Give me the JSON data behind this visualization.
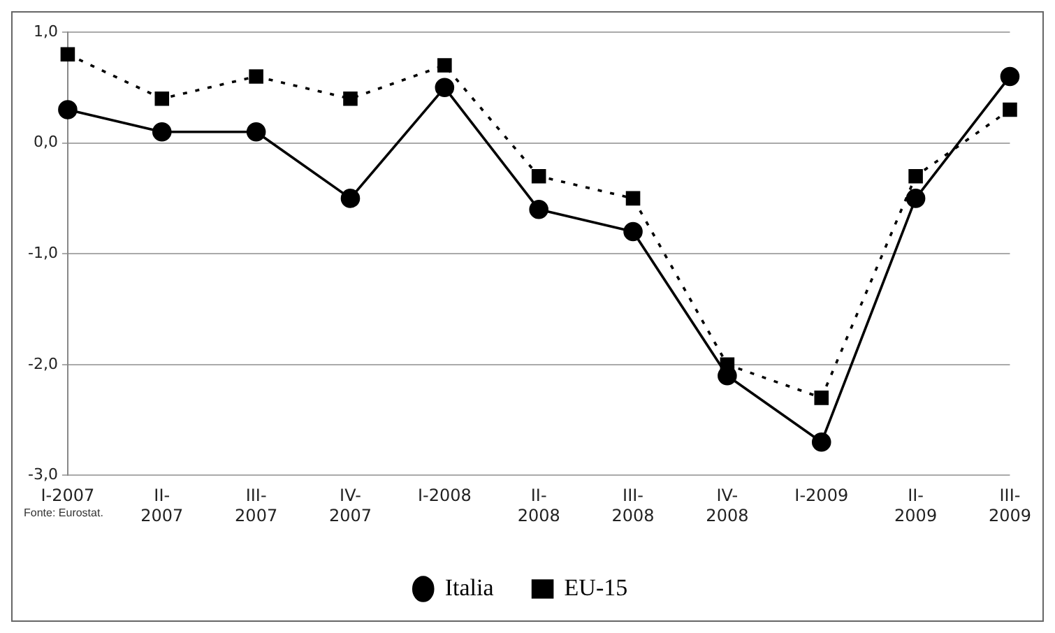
{
  "chart_data": {
    "type": "line",
    "categories": [
      "I-2007",
      "II- 2007",
      "III- 2007",
      "IV- 2007",
      "I-2008",
      "II- 2008",
      "III- 2008",
      "IV- 2008",
      "I-2009",
      "II- 2009",
      "III- 2009"
    ],
    "series": [
      {
        "name": "Italia",
        "color": "#000000",
        "marker": "circle",
        "line_style": "solid",
        "values": [
          0.3,
          0.1,
          0.1,
          -0.5,
          0.5,
          -0.6,
          -0.8,
          -2.1,
          -2.7,
          -0.5,
          0.6
        ]
      },
      {
        "name": "EU-15",
        "color": "#000000",
        "marker": "square",
        "line_style": "dotted",
        "values": [
          0.8,
          0.4,
          0.6,
          0.4,
          0.7,
          -0.3,
          -0.5,
          -2.0,
          -2.3,
          -0.3,
          0.3
        ]
      }
    ],
    "ylim": [
      -3,
      1
    ],
    "yticks": [
      {
        "value": -3,
        "label": "-3,0"
      },
      {
        "value": -2,
        "label": "-2,0"
      },
      {
        "value": -1,
        "label": "-1,0"
      },
      {
        "value": 0,
        "label": "0,0"
      },
      {
        "value": 1,
        "label": "1,0"
      }
    ],
    "grid": "y",
    "legend": "bottom",
    "annotations": [
      "Fonte: Eurostat."
    ]
  }
}
